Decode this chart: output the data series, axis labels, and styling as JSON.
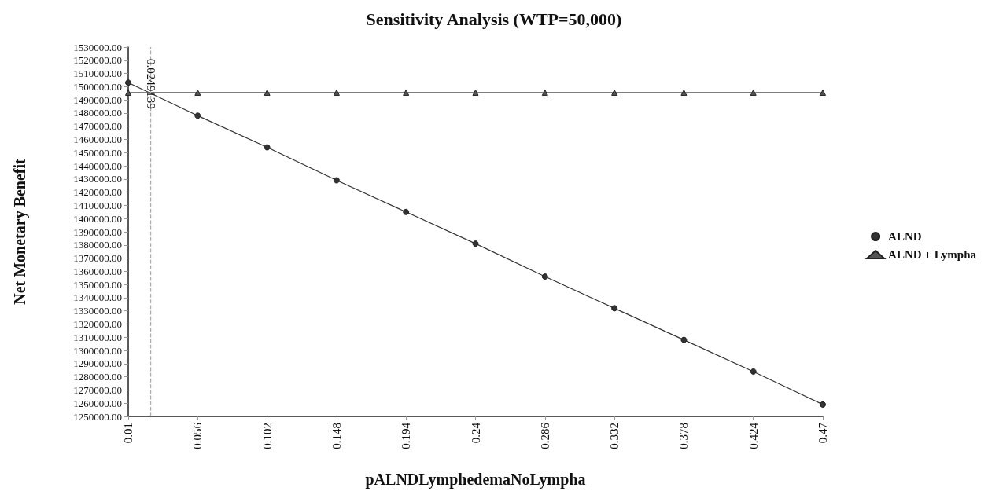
{
  "chart_data": {
    "type": "line",
    "title": "Sensitivity Analysis (WTP=50,000)",
    "xlabel": "pALNDLymphedemaNoLympha",
    "ylabel": "Net Monetary Benefit",
    "x": [
      0.01,
      0.056,
      0.102,
      0.148,
      0.194,
      0.24,
      0.286,
      0.332,
      0.378,
      0.424,
      0.47
    ],
    "series": [
      {
        "name": "ALND",
        "color": "#333333",
        "marker": "circle",
        "values": [
          1503000,
          1478000,
          1454000,
          1429000,
          1405000,
          1381000,
          1356000,
          1332000,
          1308000,
          1284000,
          1259000
        ]
      },
      {
        "name": "ALND + Lympha",
        "color": "#555555",
        "marker": "triangle",
        "values": [
          1495500,
          1495500,
          1495500,
          1495500,
          1495500,
          1495500,
          1495500,
          1495500,
          1495500,
          1495500,
          1495500
        ]
      }
    ],
    "xlim": [
      0.01,
      0.47
    ],
    "xticks": [
      0.01,
      0.056,
      0.102,
      0.148,
      0.194,
      0.24,
      0.286,
      0.332,
      0.378,
      0.424,
      0.47
    ],
    "ylim": [
      1250000,
      1530000
    ],
    "yticks": [
      {
        "value": 1250000,
        "label": "1250000.00"
      },
      {
        "value": 1260000,
        "label": "1260000.00"
      },
      {
        "value": 1270000,
        "label": "1270000.00"
      },
      {
        "value": 1280000,
        "label": "1280000.00"
      },
      {
        "value": 1290000,
        "label": "1290000.00"
      },
      {
        "value": 1300000,
        "label": "1300000.00"
      },
      {
        "value": 1310000,
        "label": "1310000.00"
      },
      {
        "value": 1320000,
        "label": "1320000.00"
      },
      {
        "value": 1330000,
        "label": "1330000.00"
      },
      {
        "value": 1340000,
        "label": "1340000.00"
      },
      {
        "value": 1350000,
        "label": "1350000.00"
      },
      {
        "value": 1360000,
        "label": "1360000.00"
      },
      {
        "value": 1370000,
        "label": "1370000.00"
      },
      {
        "value": 1380000,
        "label": "1380000.00"
      },
      {
        "value": 1390000,
        "label": "1390000.00"
      },
      {
        "value": 1400000,
        "label": "1400000.00"
      },
      {
        "value": 1410000,
        "label": "1410000.00"
      },
      {
        "value": 1420000,
        "label": "1420000.00"
      },
      {
        "value": 1430000,
        "label": "1430000.00"
      },
      {
        "value": 1440000,
        "label": "1440000.00"
      },
      {
        "value": 1450000,
        "label": "1450000.00"
      },
      {
        "value": 1460000,
        "label": "1460000.00"
      },
      {
        "value": 1470000,
        "label": "1470000.00"
      },
      {
        "value": 1480000,
        "label": "1480000.00"
      },
      {
        "value": 1490000,
        "label": "1490000.00"
      },
      {
        "value": 1500000,
        "label": "1500000.00"
      },
      {
        "value": 1510000,
        "label": "1510000.00"
      },
      {
        "value": 1520000,
        "label": "1520000.00"
      },
      {
        "value": 1530000,
        "label": "1530000.00"
      }
    ],
    "ref_lines": [
      {
        "axis": "x",
        "value": 0.0249139,
        "label": "0.0249139",
        "color": "#aaaaaa",
        "line_style": "dashed"
      }
    ],
    "grid": false,
    "legend": "right",
    "line_style": "solid"
  }
}
